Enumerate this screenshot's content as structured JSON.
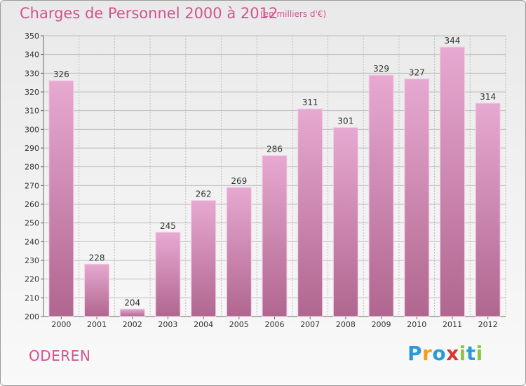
{
  "header": {
    "title": "Charges de Personnel 2000 à 2012",
    "subtitle": "(en milliers d'€)"
  },
  "footer": {
    "commune": "ODEREN",
    "brand_letters": [
      "P",
      "r",
      "o",
      "x",
      "i",
      "t",
      "i"
    ],
    "brand_colors": [
      "#2a9bd6",
      "#f0a018",
      "#2a9bd6",
      "#d6372f",
      "#8cc63f",
      "#2a9bd6",
      "#8cc63f"
    ]
  },
  "colors": {
    "bar_top": "#e7a9d1",
    "bar_bottom": "#b0668f",
    "bar_edge": "#f3cfe6",
    "grid": "#bdbdbd",
    "accent": "#d2538f"
  },
  "chart_data": {
    "type": "bar",
    "title": "Charges de Personnel 2000 à 2012",
    "subtitle": "(en milliers d'€)",
    "categories": [
      "2000",
      "2001",
      "2002",
      "2003",
      "2004",
      "2005",
      "2006",
      "2007",
      "2008",
      "2009",
      "2010",
      "2011",
      "2012"
    ],
    "values": [
      326,
      228,
      204,
      245,
      262,
      269,
      286,
      311,
      301,
      329,
      327,
      344,
      314
    ],
    "ylim": [
      200,
      350
    ],
    "yticks": [
      200,
      210,
      220,
      230,
      240,
      250,
      260,
      270,
      280,
      290,
      300,
      310,
      320,
      330,
      340,
      350
    ],
    "grid": true,
    "data_labels": true
  }
}
